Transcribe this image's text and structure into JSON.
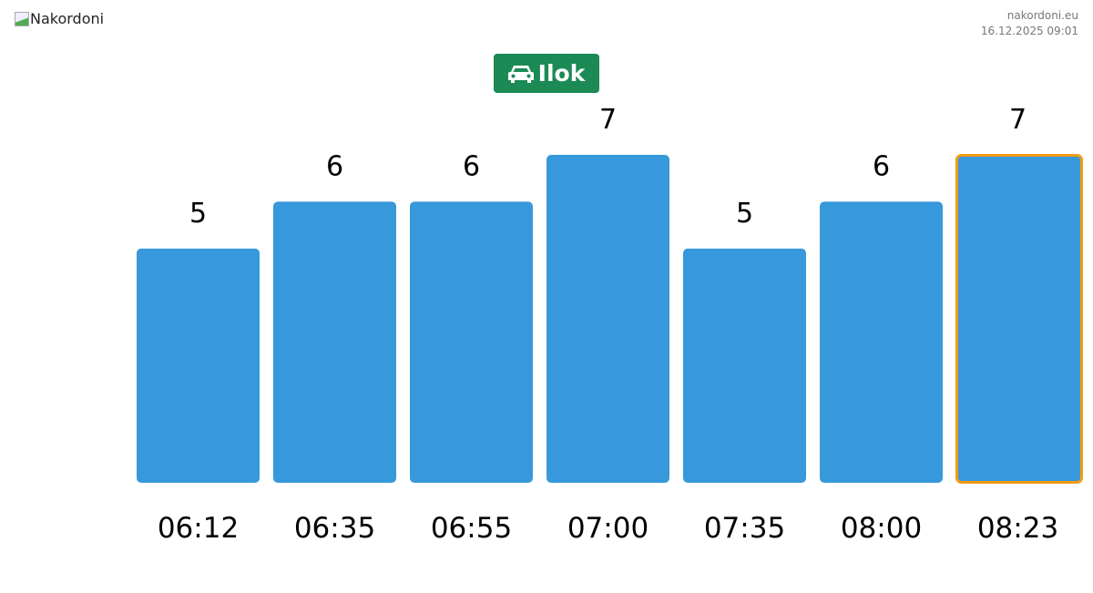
{
  "header": {
    "logo_alt": "Nakordoni",
    "site": "nakordoni.eu",
    "timestamp": "16.12.2025 09:01"
  },
  "crossing": {
    "name": "Ilok",
    "icon": "car-icon",
    "color": "#1c8a55"
  },
  "chart_data": {
    "type": "bar",
    "categories": [
      "06:12",
      "06:35",
      "06:55",
      "07:00",
      "07:35",
      "08:00",
      "08:23"
    ],
    "values": [
      5,
      6,
      6,
      7,
      5,
      6,
      7
    ],
    "highlighted": "08:23",
    "ylim": [
      0,
      7
    ],
    "bar_color": "#3798db",
    "highlight_color": "#f39c12",
    "grid": false
  }
}
